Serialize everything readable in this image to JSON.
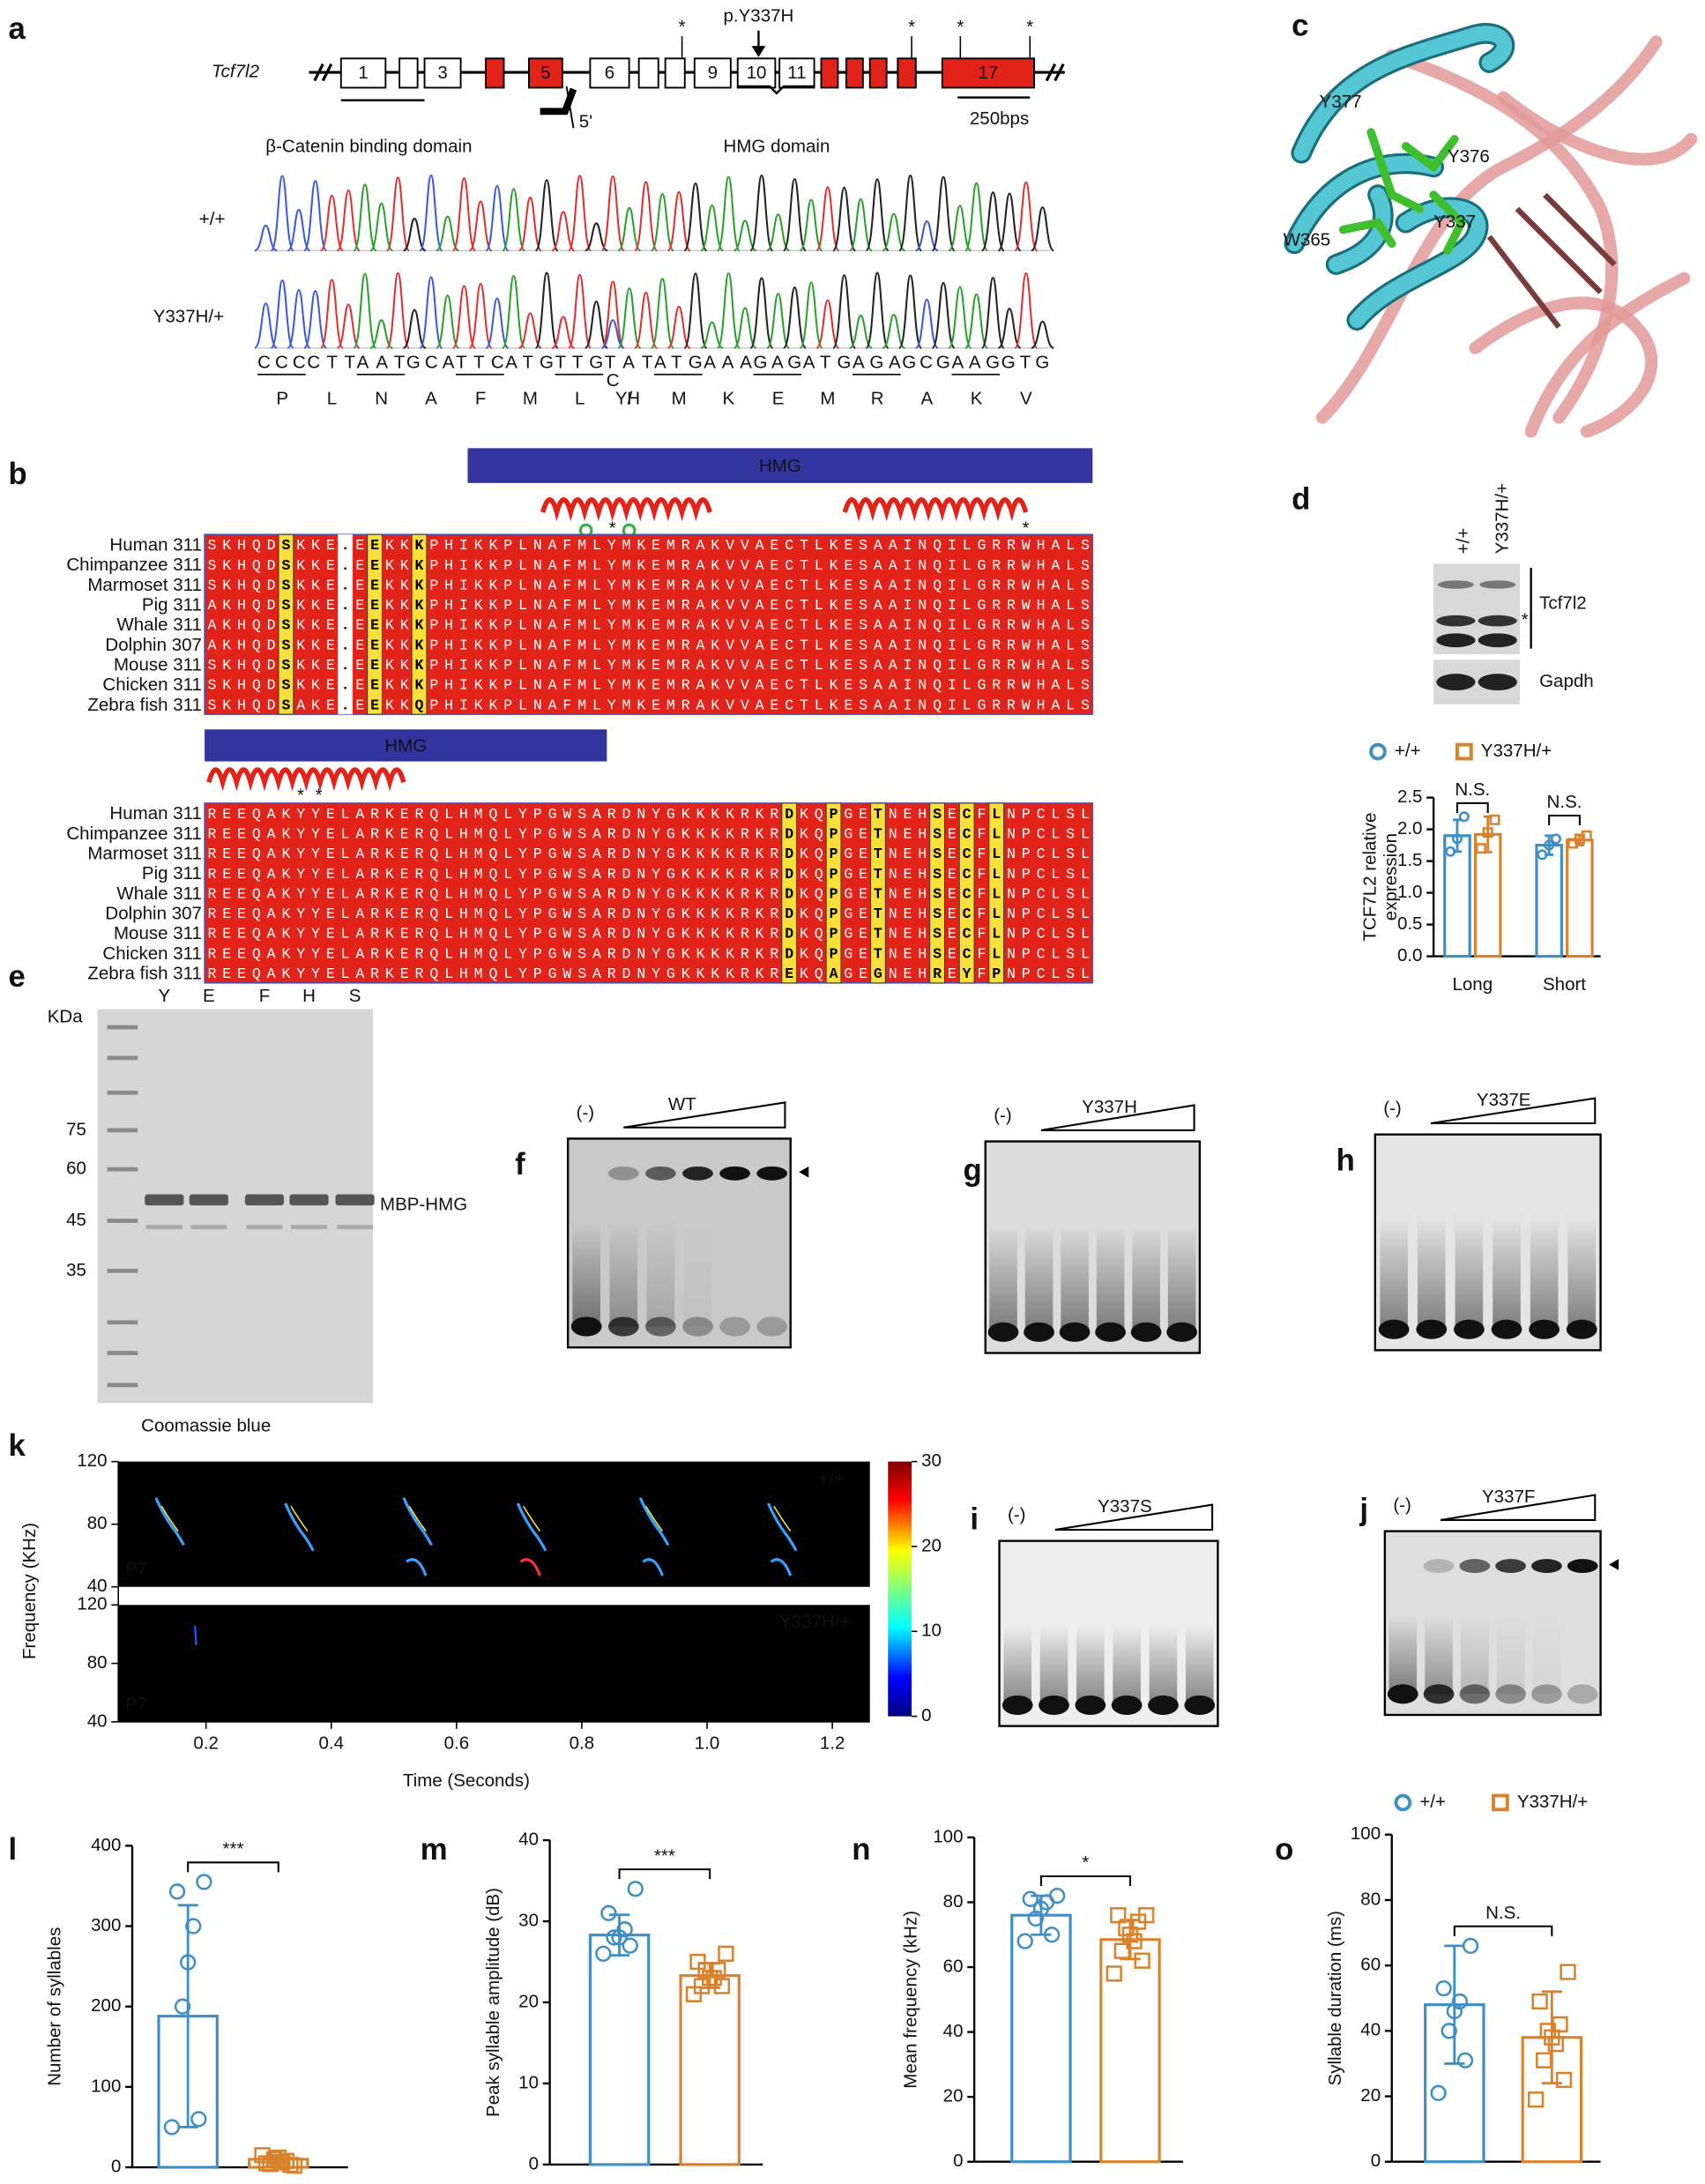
{
  "figure_labels": [
    "a",
    "b",
    "c",
    "d",
    "e",
    "f",
    "g",
    "h",
    "i",
    "j",
    "k",
    "l",
    "m",
    "n",
    "o"
  ],
  "gene": {
    "name": "Tcf7l2",
    "exons": [
      "1",
      "3",
      "5",
      "6",
      "9",
      "10",
      "11",
      "17"
    ],
    "mutation": "p.Y337H",
    "promoter": "5'",
    "domains": [
      "β-Catenin binding domain",
      "HMG domain"
    ],
    "scale_bar": "250bps",
    "asterisk": "*"
  },
  "chromatogram": {
    "genotypes": [
      "+/+",
      "Y337H/+"
    ],
    "codons": [
      "CCC",
      "CTT",
      "AAT",
      "GCA",
      "TTC",
      "ATG",
      "TTG",
      "TAT",
      "ATG",
      "AAA",
      "GAG",
      "ATG",
      "AGA",
      "GCG",
      "AAG",
      "GTG"
    ],
    "mutant_base": "C",
    "residues": [
      "P",
      "L",
      "N",
      "A",
      "F",
      "M",
      "L",
      "Y/",
      "M",
      "K",
      "E",
      "M",
      "R",
      "A",
      "K",
      "V"
    ],
    "mutant_residue": "H"
  },
  "alignment": {
    "domain": "HMG",
    "asterisk": "*",
    "blocks": [
      {
        "species": [
          "Human 311",
          "Chimpanzee 311",
          "Marmoset 311",
          "Pig 311",
          "Whale 311",
          "Dolphin 307",
          "Mouse 311",
          "Chicken 311",
          "Zebra fish 311"
        ],
        "sequences": [
          "SKHQDSKKE.EEKKKPHIKKPLNAFMLYMKEMRAKVVAECTLKESAAINQILGRRWHALS",
          "SKHQDSKKE.EEKKKPHIKKPLNAFMLYMKEMRAKVVAECTLKESAAINQILGRRWHALS",
          "SKHQDSKKE.EEKKKPHIKKPLNAFMLYMKEMRAKVVAECTLKESAAINQILGRRWHALS",
          "AKHQDSKKE.EEKKKPHIKKPLNAFMLYMKEMRAKVVAECTLKESAAINQILGRRWHALS",
          "AKHQDSKKE.EEKKKPHIKKPLNAFMLYMKEMRAKVVAECTLKESAAINQILGRRWHALS",
          "AKHQDSKKE.EEKKKPHIKKPLNAFMLYMKEMRAKVVAECTLKESAAINQILGRRWHALS",
          "SKHQDSKKE.EEKKKPHIKKPLNAFMLYMKEMRAKVVAECTLKESAAINQILGRRWHALS",
          "SKHQDSKKE.EEKKKPHIKKPLNAFMLYMKEMRAKVVAECTLKESAAINQILGRRWHALS",
          "SKHQDSAKE.EEKKQPHIKKPLNAFMLYMKEMRAKVVAECTLKESAAINQILGRRWHALS"
        ]
      },
      {
        "species": [
          "Human 311",
          "Chimpanzee 311",
          "Marmoset 311",
          "Pig 311",
          "Whale 311",
          "Dolphin 307",
          "Mouse 311",
          "Chicken 311",
          "Zebra fish 311"
        ],
        "sequences": [
          "REEQAKYYELARKERQLHMQLYPGWSARDNYGKKKKRKRDKQPGETNEHSECFLNPCLSL",
          "REEQAKYYELARKERQLHMQLYPGWSARDNYGKKKKRKRDKQPGETNEHSECFLNPCLSL",
          "REEQAKYYELARKERQLHMQLYPGWSARDNYGKKKKRKRDKQPGETNEHSECFLNPCLSL",
          "REEQAKYYELARKERQLHMQLYPGWSARDNYGKKKKRKRDKQPGETNEHSECFLNPCLSL",
          "REEQAKYYELARKERQLHMQLYPGWSARDNYGKKKKRKRDKQPGETNEHSECFLNPCLSL",
          "REEQAKYYELARKERQLHMQLYPGWSARDNYGKKKKRKRDKQPGETNEHSECFLNPCLSL",
          "REEQAKYYELARKERQLHMQLYPGWSARDNYGKKKKRKRDKQPGETNEHSECFLNPCLSL",
          "REEQAKYYELARKERQLHMQLYPGWSARDNYGKKKKRKRDKQPGETNEHSECFLNPCLSL",
          "REEQAKYYELARKERQLHMQLYPGWSARDNYGKKKKRKREKQAGEGNEHREYFPNPCLSL"
        ]
      }
    ]
  },
  "structure": {
    "residues": [
      "Y377",
      "Y376",
      "Y337",
      "W365"
    ]
  },
  "western": {
    "genotypes": [
      "+/+",
      "Y337H/+"
    ],
    "proteins": [
      "Tcf7l2",
      "Gapdh"
    ],
    "marker": "*"
  },
  "coomassie": {
    "unit": "KDa",
    "lanes": [
      "Y",
      "E",
      "F",
      "H",
      "S"
    ],
    "markers": [
      75,
      60,
      45,
      35
    ],
    "band": "MBP-HMG",
    "stain": "Coomassie blue"
  },
  "emsa": {
    "control": "(-)",
    "proteins": [
      "WT",
      "Y337H",
      "Y337E",
      "Y337S",
      "Y337F"
    ]
  },
  "spectrogram": {
    "genotypes": [
      "+/+",
      "Y337H/+"
    ],
    "age": "P7",
    "x_label": "Time (Seconds)",
    "y_label": "Frequency (KHz)",
    "xlim": [
      0.06,
      1.26
    ],
    "xticks": [
      0.2,
      0.4,
      0.6,
      0.8,
      {
        "value": 1,
        "label": "1.0"
      },
      1.2
    ],
    "ylim": [
      40,
      120
    ],
    "yticks": [
      40,
      80,
      120
    ],
    "colorbar_lim": [
      0,
      30
    ],
    "colorbar_ticks": [
      0,
      10,
      20,
      30
    ]
  },
  "chart_data": [
    {
      "type": "bar",
      "categories": [
        "Long",
        "Short"
      ],
      "y_label": [
        "TCF7L2 relative",
        "expression"
      ],
      "ylim": [
        0,
        2.5
      ],
      "yticks": [
        {
          "value": 0,
          "label": "0.0"
        },
        0.5,
        {
          "value": 1,
          "label": "1.0"
        },
        1.5,
        {
          "value": 2,
          "label": "2.0"
        },
        2.5
      ],
      "annotations": [
        "N.S.",
        "N.S."
      ],
      "series": [
        {
          "name": "+/+",
          "color": "#3d8fc4",
          "values": [
            1.9,
            1.75
          ],
          "errors": [
            0.25,
            0.15
          ],
          "points": [
            [
              2.2,
              1.85,
              1.65
            ],
            [
              1.85,
              1.75,
              1.6
            ]
          ]
        },
        {
          "name": "Y337H/+",
          "color": "#d9822b",
          "values": [
            1.92,
            1.83
          ],
          "errors": [
            0.28,
            0.08
          ],
          "points": [
            [
              2.15,
              1.95,
              1.7
            ],
            [
              1.9,
              1.85,
              1.78
            ]
          ]
        }
      ]
    },
    {
      "type": "bar",
      "y_label": "Number of syllables",
      "ylim": [
        0,
        400
      ],
      "yticks": [
        0,
        100,
        200,
        300,
        400
      ],
      "annotations": [
        "***"
      ],
      "series": [
        {
          "color": "#3d8fc4",
          "values": [
            188
          ],
          "errors": [
            138
          ],
          "points": [
            [
              355,
              343,
              300,
              255,
              200,
              60,
              50
            ]
          ]
        },
        {
          "color": "#d9822b",
          "values": [
            10
          ],
          "errors": [
            5
          ],
          "points": [
            [
              2,
              5,
              8,
              10,
              12,
              6,
              4,
              3,
              15
            ]
          ]
        }
      ]
    },
    {
      "type": "bar",
      "y_label": "Peak syllable amplitude (dB)",
      "ylim": [
        0,
        40
      ],
      "yticks": [
        0,
        10,
        20,
        30,
        40
      ],
      "annotations": [
        "***"
      ],
      "series": [
        {
          "color": "#3d8fc4",
          "values": [
            28.3
          ],
          "errors": [
            2.5
          ],
          "points": [
            [
              34,
              31,
              29,
              28,
              28,
              27,
              26
            ]
          ]
        },
        {
          "color": "#d9822b",
          "values": [
            23.3
          ],
          "errors": [
            1.5
          ],
          "points": [
            [
              26,
              25,
              24,
              24,
              23,
              23,
              22,
              22,
              21
            ]
          ]
        }
      ]
    },
    {
      "type": "bar",
      "y_label": "Mean frequency (kHz)",
      "ylim": [
        0,
        100
      ],
      "yticks": [
        0,
        20,
        40,
        60,
        80,
        100
      ],
      "annotations": [
        "*"
      ],
      "series": [
        {
          "color": "#3d8fc4",
          "values": [
            76
          ],
          "errors": [
            6
          ],
          "points": [
            [
              82,
              81,
              80,
              78,
              75,
              70,
              68
            ]
          ]
        },
        {
          "color": "#d9822b",
          "values": [
            68.5
          ],
          "errors": [
            6
          ],
          "points": [
            [
              76,
              76,
              74,
              72,
              70,
              68,
              65,
              62,
              58
            ]
          ]
        }
      ]
    },
    {
      "type": "bar",
      "y_label": "Syllable duration (ms)",
      "ylim": [
        0,
        100
      ],
      "yticks": [
        0,
        20,
        40,
        60,
        80,
        100
      ],
      "annotations": [
        "N.S."
      ],
      "series": [
        {
          "name": "+/+",
          "color": "#3d8fc4",
          "values": [
            48
          ],
          "errors": [
            18
          ],
          "points": [
            [
              66,
              53,
              49,
              46,
              40,
              31,
              21
            ]
          ]
        },
        {
          "name": "Y337H/+",
          "color": "#d9822b",
          "values": [
            38
          ],
          "errors": [
            14
          ],
          "points": [
            [
              58,
              49,
              42,
              40,
              38,
              36,
              31,
              25,
              19
            ]
          ]
        }
      ]
    }
  ]
}
